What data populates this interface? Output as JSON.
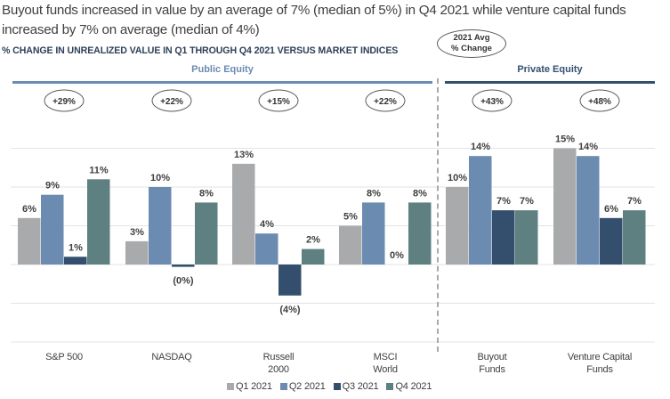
{
  "headline": "Buyout funds increased in value by an average of 7% (median of 5%) in Q4 2021 while venture capital funds increased by 7% on average (median of 4%)",
  "subtitle": "% CHANGE IN UNREALIZED VALUE IN Q1 THROUGH Q4 2021 VERSUS MARKET INDICES",
  "avg_badge": {
    "line1": "2021 Avg",
    "line2": "% Change"
  },
  "sections": [
    {
      "label": "Public Equity",
      "color": "#6b8bb0"
    },
    {
      "label": "Private Equity",
      "color": "#344f6e"
    }
  ],
  "chart_data": {
    "type": "bar",
    "title": "% CHANGE IN UNREALIZED VALUE IN Q1 THROUGH Q4 2021 VERSUS MARKET INDICES",
    "xlabel": "",
    "ylabel": "",
    "ylim": [
      -10,
      20
    ],
    "grid": true,
    "gridlines": [
      -10,
      -5,
      0,
      5,
      10,
      15
    ],
    "legend_position": "bottom",
    "categories": [
      "S&P 500",
      "NASDAQ",
      "Russell 2000",
      "MSCI World",
      "Buyout Funds",
      "Venture Capital Funds"
    ],
    "category_labels": [
      [
        "S&P 500"
      ],
      [
        "NASDAQ"
      ],
      [
        "Russell",
        "2000"
      ],
      [
        "MSCI",
        "World"
      ],
      [
        "Buyout",
        "Funds"
      ],
      [
        "Venture Capital",
        "Funds"
      ]
    ],
    "category_groups": [
      "Public Equity",
      "Public Equity",
      "Public Equity",
      "Public Equity",
      "Private Equity",
      "Private Equity"
    ],
    "annual_avg_change": [
      "+29%",
      "+22%",
      "+15%",
      "+22%",
      "+43%",
      "+48%"
    ],
    "series": [
      {
        "name": "Q1 2021",
        "color": "#a9aaac",
        "values": [
          6,
          3,
          13,
          5,
          10,
          15
        ],
        "labels": [
          "6%",
          "3%",
          "13%",
          "5%",
          "10%",
          "15%"
        ]
      },
      {
        "name": "Q2 2021",
        "color": "#6b8bb0",
        "values": [
          9,
          10,
          4,
          8,
          14,
          14
        ],
        "labels": [
          "9%",
          "10%",
          "4%",
          "8%",
          "14%",
          "14%"
        ]
      },
      {
        "name": "Q3 2021",
        "color": "#344f6e",
        "values": [
          1,
          -0.3,
          -4,
          0,
          7,
          6
        ],
        "labels": [
          "1%",
          "(0%)",
          "(4%)",
          "0%",
          "7%",
          "6%"
        ]
      },
      {
        "name": "Q4 2021",
        "color": "#5e8080",
        "values": [
          11,
          8,
          2,
          8,
          7,
          7
        ],
        "labels": [
          "11%",
          "8%",
          "2%",
          "8%",
          "7%",
          "7%"
        ]
      }
    ]
  }
}
